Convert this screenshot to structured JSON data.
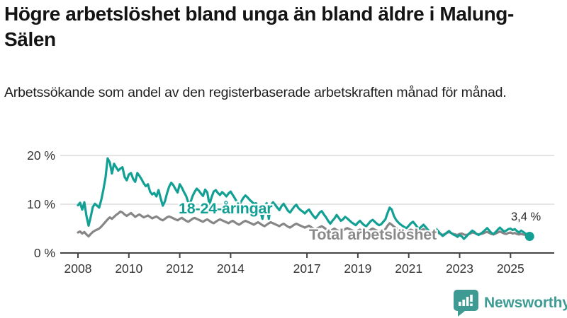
{
  "header": {
    "title": "Högre arbetslöshet bland unga än bland äldre i Malung-Sälen",
    "subtitle": "Arbetssökande som andel av den registerbaserade arbetskraften månad för månad."
  },
  "chart_data": {
    "type": "line",
    "x_start": "2008-01",
    "x_end": "2025-10",
    "x_frequency": "monthly",
    "unit": "%",
    "ylim": [
      0,
      21
    ],
    "grid": "horizontal",
    "legend_position": "inline-labels",
    "y_ticks": [
      {
        "value": 0,
        "label": "0 %"
      },
      {
        "value": 10,
        "label": "10 %"
      },
      {
        "value": 20,
        "label": "20 %"
      }
    ],
    "x_ticks": [
      {
        "year": 2008,
        "label": "2008"
      },
      {
        "year": 2010,
        "label": "2010"
      },
      {
        "year": 2012,
        "label": "2012"
      },
      {
        "year": 2014,
        "label": "2014"
      },
      {
        "year": 2017,
        "label": "2017"
      },
      {
        "year": 2019,
        "label": "2019"
      },
      {
        "year": 2021,
        "label": "2021"
      },
      {
        "year": 2023,
        "label": "2023"
      },
      {
        "year": 2025,
        "label": "2025"
      }
    ],
    "series": [
      {
        "name": "18-24-åringar",
        "color": "#12A095",
        "values": [
          9.8,
          10.3,
          8.9,
          10.4,
          7.6,
          5.6,
          7.4,
          9.4,
          10.1,
          9.7,
          9.3,
          10.9,
          13.0,
          15.5,
          19.4,
          18.6,
          16.3,
          18.3,
          17.6,
          16.9,
          17.3,
          17.6,
          15.6,
          14.9,
          16.1,
          16.4,
          15.2,
          14.6,
          16.4,
          15.8,
          15.1,
          14.3,
          13.7,
          14.1,
          12.6,
          12.0,
          12.3,
          11.6,
          12.9,
          11.2,
          9.7,
          10.6,
          12.2,
          13.6,
          14.4,
          13.9,
          13.1,
          12.4,
          14.1,
          13.4,
          12.5,
          11.7,
          10.4,
          10.3,
          11.6,
          12.5,
          13.2,
          12.8,
          12.2,
          11.7,
          13.0,
          12.4,
          9.9,
          11.4,
          12.6,
          12.9,
          12.3,
          11.9,
          12.5,
          12.1,
          11.6,
          12.2,
          12.6,
          11.9,
          11.2,
          10.4,
          9.8,
          10.6,
          11.3,
          11.8,
          11.4,
          10.9,
          10.5,
          10.1,
          10.2,
          9.4,
          8.6,
          7.0,
          9.6,
          10.2,
          7.0,
          9.8,
          10.4,
          9.9,
          9.3,
          8.8,
          9.6,
          10.1,
          9.4,
          8.7,
          8.3,
          8.9,
          9.5,
          9.9,
          9.2,
          8.8,
          8.5,
          8.1,
          8.6,
          8.9,
          8.2,
          7.6,
          7.1,
          7.7,
          8.3,
          8.6,
          7.9,
          7.3,
          6.6,
          6.0,
          6.6,
          7.1,
          7.8,
          7.2,
          6.6,
          6.9,
          7.4,
          7.1,
          6.7,
          6.3,
          6.0,
          5.7,
          6.2,
          6.6,
          6.1,
          5.7,
          5.5,
          6.0,
          6.5,
          6.8,
          6.4,
          6.0,
          5.7,
          5.9,
          6.4,
          6.9,
          8.2,
          9.3,
          8.9,
          7.6,
          6.8,
          6.3,
          5.9,
          5.6,
          5.3,
          5.1,
          5.6,
          6.1,
          6.4,
          5.9,
          5.3,
          5.0,
          5.4,
          5.8,
          5.3,
          4.8,
          4.4,
          4.1,
          4.5,
          4.9,
          4.4,
          3.9,
          3.5,
          3.8,
          4.2,
          4.5,
          4.1,
          3.8,
          3.6,
          3.3,
          3.7,
          3.4,
          2.9,
          3.3,
          3.8,
          4.2,
          4.6,
          4.3,
          3.9,
          3.7,
          4.0,
          4.3,
          4.7,
          5.1,
          4.6,
          4.1,
          3.9,
          4.3,
          4.8,
          5.2,
          4.8,
          4.4,
          4.6,
          4.9,
          5.0,
          4.7,
          4.9,
          4.5,
          4.2,
          4.6,
          4.3,
          4.0,
          3.7,
          3.4
        ]
      },
      {
        "name": "Total arbetslöshet",
        "color": "#868686",
        "values": [
          4.2,
          4.4,
          4.0,
          4.3,
          3.8,
          3.4,
          3.9,
          4.3,
          4.6,
          4.8,
          5.0,
          5.4,
          5.9,
          6.4,
          6.9,
          7.3,
          7.0,
          7.4,
          7.8,
          8.1,
          8.5,
          8.3,
          7.9,
          7.6,
          7.9,
          8.2,
          7.8,
          7.4,
          7.7,
          7.9,
          7.6,
          7.3,
          7.5,
          7.7,
          7.4,
          7.1,
          7.3,
          7.5,
          7.2,
          6.9,
          6.7,
          7.0,
          7.3,
          7.5,
          7.3,
          7.1,
          6.9,
          6.7,
          7.0,
          7.2,
          6.9,
          6.6,
          6.4,
          6.7,
          7.0,
          7.2,
          7.0,
          6.8,
          6.6,
          6.4,
          6.7,
          6.9,
          6.6,
          6.3,
          6.1,
          6.4,
          6.7,
          6.9,
          6.7,
          6.5,
          6.3,
          6.1,
          6.4,
          6.6,
          6.3,
          6.0,
          5.8,
          6.1,
          6.4,
          6.6,
          6.4,
          6.2,
          6.0,
          5.8,
          6.1,
          6.3,
          6.0,
          5.7,
          5.5,
          5.8,
          6.1,
          6.3,
          6.1,
          5.9,
          5.7,
          5.5,
          5.8,
          6.0,
          5.7,
          5.4,
          5.2,
          5.5,
          5.8,
          6.0,
          5.8,
          5.6,
          5.4,
          5.2,
          5.4,
          5.6,
          5.3,
          5.0,
          4.8,
          5.1,
          5.3,
          5.5,
          5.2,
          4.9,
          4.7,
          4.5,
          4.8,
          5.0,
          4.7,
          4.5,
          4.3,
          4.6,
          4.9,
          5.1,
          4.9,
          4.7,
          4.5,
          4.3,
          4.6,
          4.8,
          4.5,
          4.3,
          4.2,
          4.5,
          4.8,
          5.0,
          4.8,
          4.6,
          4.4,
          4.3,
          4.6,
          4.9,
          5.6,
          6.1,
          5.8,
          5.4,
          5.1,
          4.9,
          4.7,
          4.5,
          4.4,
          4.3,
          4.6,
          4.8,
          4.6,
          4.4,
          4.2,
          4.4,
          4.7,
          4.9,
          4.6,
          4.3,
          4.1,
          3.9,
          4.1,
          4.3,
          4.1,
          3.9,
          3.7,
          3.9,
          4.1,
          4.3,
          4.1,
          3.9,
          3.8,
          3.7,
          3.9,
          4.0,
          3.8,
          3.7,
          3.8,
          4.0,
          4.2,
          4.1,
          3.9,
          3.8,
          3.9,
          4.0,
          4.2,
          4.3,
          4.1,
          3.9,
          3.8,
          4.0,
          4.2,
          4.4,
          4.2,
          4.0,
          3.9,
          4.1,
          4.2,
          4.0,
          4.1,
          3.9,
          3.8,
          3.9,
          3.8,
          3.7,
          3.6,
          3.6
        ]
      }
    ],
    "end_annotation": {
      "series": "18-24-åringar",
      "value": 3.4,
      "label": "3,4 %"
    }
  },
  "colors": {
    "accent_teal": "#12A095",
    "neutral_gray": "#868686",
    "grid": "#dcdcdc",
    "axis": "#444444",
    "brand_teal": "#3E9B93"
  },
  "footer": {
    "brand": "Newsworthy"
  }
}
